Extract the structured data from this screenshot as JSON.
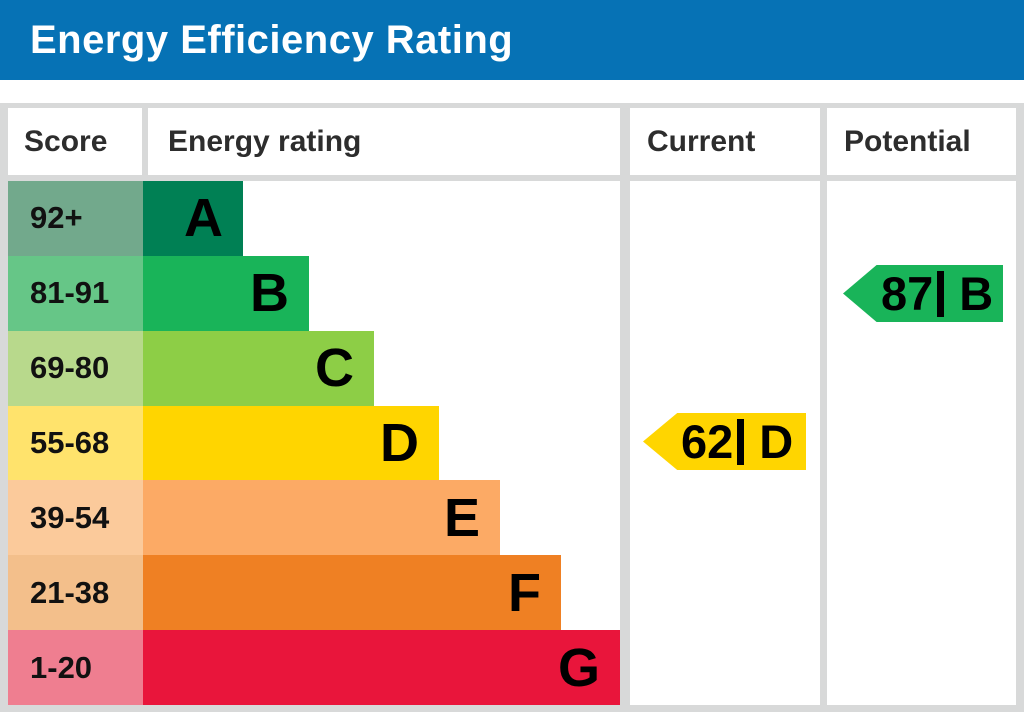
{
  "title": "Energy Efficiency Rating",
  "colors": {
    "banner_blue": "#0672b5",
    "frame_gray": "#d8d9d9",
    "panel_white": "#ffffff",
    "text_dark": "#2d2d2d",
    "text_black": "#000000"
  },
  "chart_data": {
    "type": "bar",
    "title": "Energy Efficiency Rating",
    "columns": [
      "Score",
      "Energy rating",
      "Current",
      "Potential"
    ],
    "bands": [
      {
        "letter": "A",
        "score": "92+",
        "range": [
          92,
          100
        ],
        "color": "#008054",
        "tint": "#72a98c"
      },
      {
        "letter": "B",
        "score": "81-91",
        "range": [
          81,
          91
        ],
        "color": "#19b459",
        "tint": "#66c687"
      },
      {
        "letter": "C",
        "score": "69-80",
        "range": [
          69,
          80
        ],
        "color": "#8dce46",
        "tint": "#b8d98c"
      },
      {
        "letter": "D",
        "score": "55-68",
        "range": [
          55,
          68
        ],
        "color": "#ffd500",
        "tint": "#ffe36c"
      },
      {
        "letter": "E",
        "score": "39-54",
        "range": [
          39,
          54
        ],
        "color": "#fcaa65",
        "tint": "#fbca9b"
      },
      {
        "letter": "F",
        "score": "21-38",
        "range": [
          21,
          38
        ],
        "color": "#ef8023",
        "tint": "#f3bf8b"
      },
      {
        "letter": "G",
        "score": "1-20",
        "range": [
          1,
          20
        ],
        "color": "#e9153b",
        "tint": "#ef7e90"
      }
    ],
    "current": {
      "value": "62",
      "rating": "D",
      "display": "62| D",
      "color": "#ffd500",
      "band_index": 3
    },
    "potential": {
      "value": "87",
      "rating": "B",
      "display": "87| B",
      "color": "#19b459",
      "band_index": 1
    }
  }
}
